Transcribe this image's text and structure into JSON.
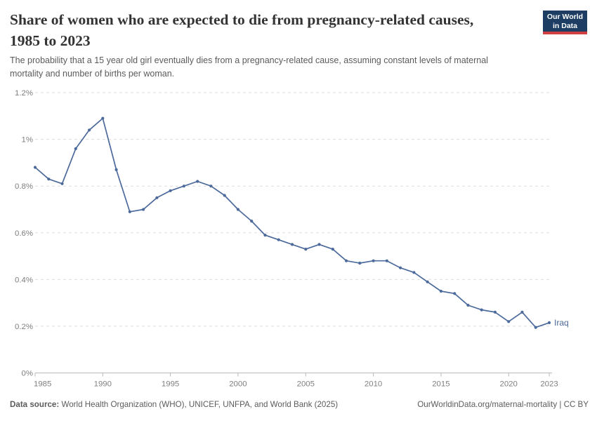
{
  "header": {
    "title": "Share of women who are expected to die from pregnancy-related causes, 1985 to 2023",
    "subtitle": "The probability that a 15 year old girl eventually dies from a pregnancy-related cause, assuming constant levels of maternal mortality and number of births per woman.",
    "logo": {
      "line1": "Our World",
      "line2": "in Data",
      "bg_color": "#1d3d63",
      "accent_color": "#cf3f42"
    }
  },
  "chart_data": {
    "type": "line",
    "title": "Share of women who are expected to die from pregnancy-related causes, 1985 to 2023",
    "x": [
      1985,
      1986,
      1987,
      1988,
      1989,
      1990,
      1991,
      1992,
      1993,
      1994,
      1995,
      1996,
      1997,
      1998,
      1999,
      2000,
      2001,
      2002,
      2003,
      2004,
      2005,
      2006,
      2007,
      2008,
      2009,
      2010,
      2011,
      2012,
      2013,
      2014,
      2015,
      2016,
      2017,
      2018,
      2019,
      2020,
      2021,
      2022,
      2023
    ],
    "series": [
      {
        "name": "Iraq",
        "color": "#4c6a9c",
        "values": [
          0.88,
          0.83,
          0.81,
          0.96,
          1.04,
          1.09,
          0.87,
          0.69,
          0.7,
          0.75,
          0.78,
          0.8,
          0.82,
          0.8,
          0.76,
          0.7,
          0.65,
          0.59,
          0.57,
          0.55,
          0.53,
          0.55,
          0.53,
          0.48,
          0.47,
          0.48,
          0.48,
          0.45,
          0.43,
          0.39,
          0.35,
          0.34,
          0.29,
          0.27,
          0.26,
          0.22,
          0.26,
          0.195,
          0.215
        ]
      }
    ],
    "unit": "%",
    "ylim": [
      0,
      1.2
    ],
    "yticks": [
      0,
      0.2,
      0.4,
      0.6,
      0.8,
      1.0,
      1.2
    ],
    "ytick_labels": [
      "0%",
      "0.2%",
      "0.4%",
      "0.6%",
      "0.8%",
      "1%",
      "1.2%"
    ],
    "xticks": [
      1985,
      1990,
      1995,
      2000,
      2005,
      2010,
      2015,
      2020,
      2023
    ],
    "grid": "horizontal-dashed",
    "legend_position": "end-of-line-label"
  },
  "footer": {
    "source_label": "Data source:",
    "source_text": " World Health Organization (WHO), UNICEF, UNFPA, and World Bank (2025)",
    "attribution": "OurWorldinData.org/maternal-mortality | CC BY"
  }
}
